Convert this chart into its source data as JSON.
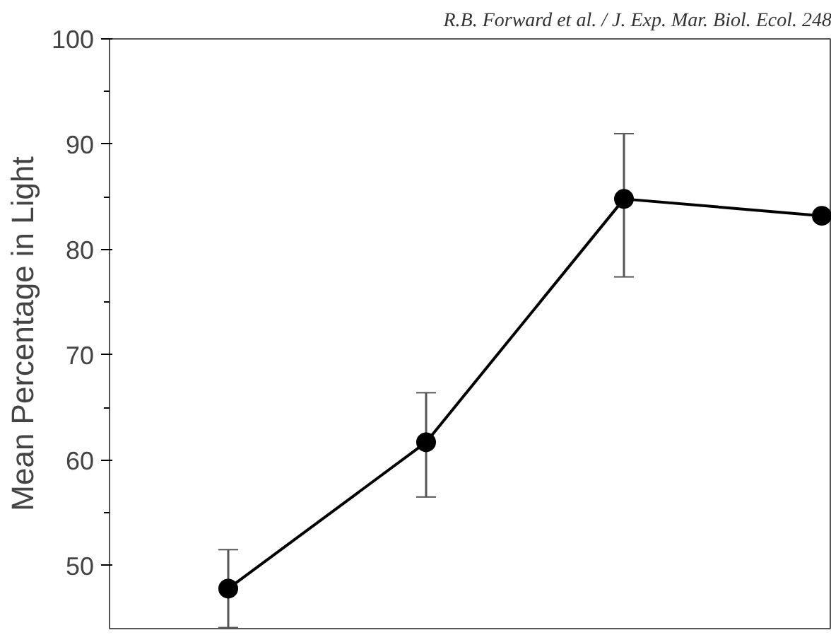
{
  "chart_data": {
    "type": "line",
    "title": "R.B. Forward et al. / J. Exp. Mar. Biol. Ecol. 248",
    "ylabel": "Mean Percentage in Light",
    "categories": [
      null,
      null,
      null,
      null
    ],
    "series": [
      {
        "color": "#000000",
        "values": [
          47.8,
          61.7,
          84.8,
          83.2
        ],
        "errors": [
          3.7,
          [
            56.5,
            66.4
          ],
          [
            77.4,
            91.0
          ],
          null
        ]
      }
    ],
    "ylim": [
      44,
      100
    ],
    "yticks": [
      50,
      60,
      70,
      80,
      90,
      100
    ],
    "grid": false,
    "marker": "circle",
    "line_style": "solid",
    "tick_labels": "y"
  }
}
